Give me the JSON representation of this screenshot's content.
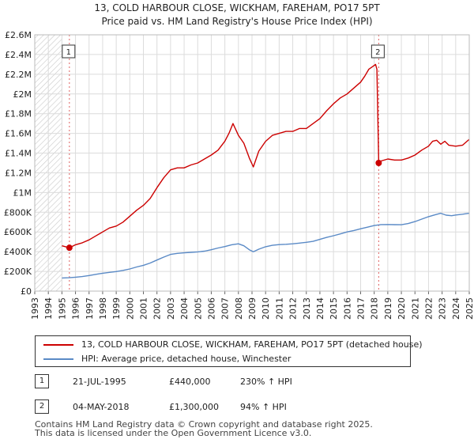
{
  "chart_data": {
    "type": "line",
    "title": "13, COLD HARBOUR CLOSE, WICKHAM, FAREHAM, PO17 5PT",
    "subtitle": "Price paid vs. HM Land Registry's House Price Index (HPI)",
    "xlim": [
      1993,
      2025
    ],
    "ylim": [
      0,
      2600000
    ],
    "x_ticks": [
      1993,
      1994,
      1995,
      1996,
      1997,
      1998,
      1999,
      2000,
      2001,
      2002,
      2003,
      2004,
      2005,
      2006,
      2007,
      2008,
      2009,
      2010,
      2011,
      2012,
      2013,
      2014,
      2015,
      2016,
      2017,
      2018,
      2019,
      2020,
      2021,
      2022,
      2023,
      2024,
      2025
    ],
    "y_ticks": [
      {
        "value": 0,
        "label": "£0"
      },
      {
        "value": 200000,
        "label": "£200K"
      },
      {
        "value": 400000,
        "label": "£400K"
      },
      {
        "value": 600000,
        "label": "£600K"
      },
      {
        "value": 800000,
        "label": "£800K"
      },
      {
        "value": 1000000,
        "label": "£1M"
      },
      {
        "value": 1200000,
        "label": "£1.2M"
      },
      {
        "value": 1400000,
        "label": "£1.4M"
      },
      {
        "value": 1600000,
        "label": "£1.6M"
      },
      {
        "value": 1800000,
        "label": "£1.8M"
      },
      {
        "value": 2000000,
        "label": "£2M"
      },
      {
        "value": 2200000,
        "label": "£2.2M"
      },
      {
        "value": 2400000,
        "label": "£2.4M"
      },
      {
        "value": 2600000,
        "label": "£2.6M"
      }
    ],
    "hatched_region": [
      1993,
      1995.0
    ],
    "series": [
      {
        "name": "13, COLD HARBOUR CLOSE, WICKHAM, FAREHAM, PO17 5PT (detached house)",
        "color": "#cc0000",
        "x": [
          1995.0,
          1995.55,
          1996.0,
          1996.5,
          1997.0,
          1997.5,
          1998.0,
          1998.5,
          1999.0,
          1999.5,
          2000.0,
          2000.5,
          2001.0,
          2001.5,
          2002.0,
          2002.5,
          2003.0,
          2003.5,
          2004.0,
          2004.5,
          2005.0,
          2005.5,
          2006.0,
          2006.5,
          2007.0,
          2007.3,
          2007.6,
          2008.0,
          2008.4,
          2008.8,
          2009.1,
          2009.5,
          2010.0,
          2010.5,
          2011.0,
          2011.5,
          2012.0,
          2012.5,
          2013.0,
          2013.5,
          2014.0,
          2014.5,
          2015.0,
          2015.5,
          2016.0,
          2016.5,
          2017.0,
          2017.3,
          2017.6,
          2017.9,
          2018.1,
          2018.2,
          2018.33,
          2018.5,
          2019.0,
          2019.5,
          2020.0,
          2020.5,
          2021.0,
          2021.5,
          2022.0,
          2022.3,
          2022.6,
          2022.9,
          2023.2,
          2023.5,
          2024.0,
          2024.5,
          2025.0
        ],
        "values": [
          460000,
          440000,
          470000,
          490000,
          520000,
          560000,
          600000,
          640000,
          660000,
          700000,
          760000,
          820000,
          870000,
          940000,
          1050000,
          1150000,
          1230000,
          1250000,
          1250000,
          1280000,
          1300000,
          1340000,
          1380000,
          1430000,
          1520000,
          1600000,
          1700000,
          1580000,
          1500000,
          1350000,
          1260000,
          1420000,
          1520000,
          1580000,
          1600000,
          1620000,
          1620000,
          1650000,
          1650000,
          1700000,
          1750000,
          1830000,
          1900000,
          1960000,
          2000000,
          2060000,
          2120000,
          2180000,
          2250000,
          2280000,
          2300000,
          2250000,
          1300000,
          1320000,
          1340000,
          1330000,
          1330000,
          1350000,
          1380000,
          1430000,
          1470000,
          1520000,
          1530000,
          1490000,
          1520000,
          1480000,
          1470000,
          1480000,
          1540000
        ]
      },
      {
        "name": "HPI: Average price, detached house, Winchester",
        "color": "#5a8ac6",
        "x": [
          1995.0,
          1995.5,
          1996.0,
          1996.5,
          1997.0,
          1997.5,
          1998.0,
          1998.5,
          1999.0,
          1999.5,
          2000.0,
          2000.5,
          2001.0,
          2001.5,
          2002.0,
          2002.5,
          2003.0,
          2003.5,
          2004.0,
          2004.5,
          2005.0,
          2005.5,
          2006.0,
          2006.5,
          2007.0,
          2007.5,
          2008.0,
          2008.4,
          2008.8,
          2009.1,
          2009.5,
          2010.0,
          2010.5,
          2011.0,
          2011.5,
          2012.0,
          2012.5,
          2013.0,
          2013.5,
          2014.0,
          2014.5,
          2015.0,
          2015.5,
          2016.0,
          2016.5,
          2017.0,
          2017.5,
          2018.0,
          2018.5,
          2019.0,
          2019.5,
          2020.0,
          2020.5,
          2021.0,
          2021.5,
          2022.0,
          2022.5,
          2022.9,
          2023.3,
          2023.7,
          2024.0,
          2024.5,
          2025.0
        ],
        "values": [
          133000,
          136000,
          141000,
          148000,
          158000,
          170000,
          181000,
          190000,
          198000,
          210000,
          225000,
          245000,
          262000,
          285000,
          315000,
          345000,
          372000,
          383000,
          388000,
          393000,
          398000,
          405000,
          420000,
          437000,
          452000,
          470000,
          480000,
          460000,
          420000,
          400000,
          425000,
          450000,
          465000,
          472000,
          475000,
          480000,
          487000,
          495000,
          505000,
          525000,
          545000,
          562000,
          580000,
          600000,
          615000,
          632000,
          648000,
          665000,
          675000,
          676000,
          674000,
          673000,
          685000,
          705000,
          730000,
          755000,
          775000,
          790000,
          770000,
          765000,
          772000,
          780000,
          790000
        ]
      }
    ],
    "sales": [
      {
        "label": "1",
        "x": 1995.55,
        "value": 440000
      },
      {
        "label": "2",
        "x": 2018.33,
        "value": 1300000
      }
    ]
  },
  "legend": {
    "red_label": "13, COLD HARBOUR CLOSE, WICKHAM, FAREHAM, PO17 5PT (detached house)",
    "blue_label": "HPI: Average price, detached house, Winchester",
    "red_color": "#cc0000",
    "blue_color": "#5a8ac6"
  },
  "sales_table": [
    {
      "num": "1",
      "date": "21-JUL-1995",
      "price": "£440,000",
      "hpi": "230% ↑ HPI"
    },
    {
      "num": "2",
      "date": "04-MAY-2018",
      "price": "£1,300,000",
      "hpi": "94% ↑ HPI"
    }
  ],
  "footer": {
    "line1": "Contains HM Land Registry data © Crown copyright and database right 2025.",
    "line2": "This data is licensed under the Open Government Licence v3.0."
  }
}
